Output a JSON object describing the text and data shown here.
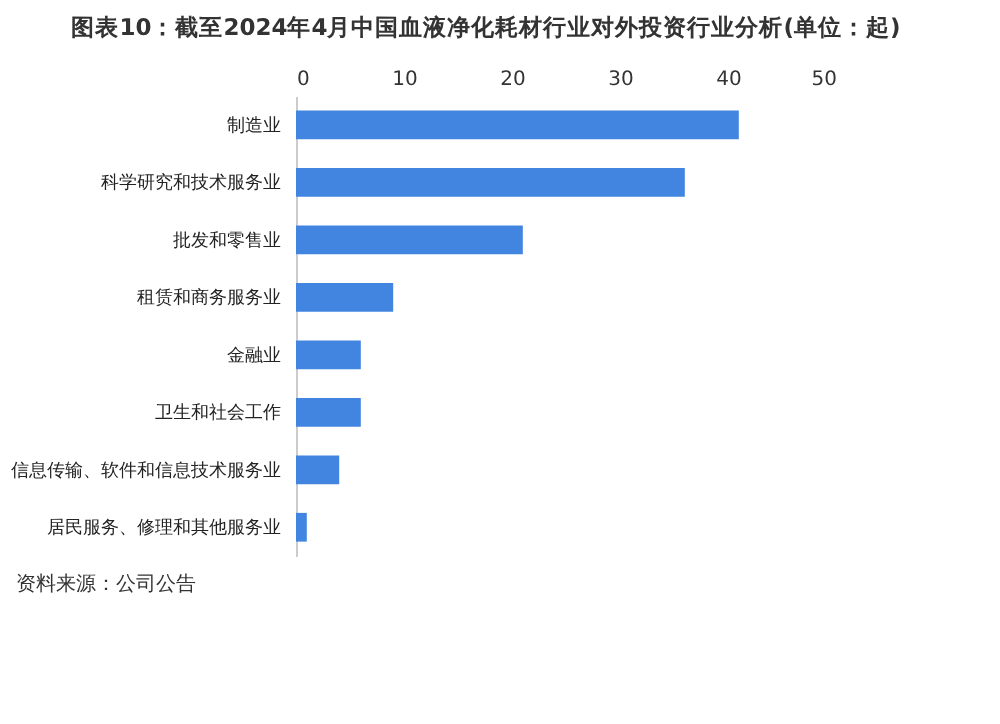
{
  "chart_data": {
    "type": "bar",
    "orientation": "horizontal",
    "title": "图表10：截至2024年4月中国血液净化耗材行业对外投资行业分析(单位：起)",
    "categories": [
      "制造业",
      "科学研究和技术服务业",
      "批发和零售业",
      "租赁和商务服务业",
      "金融业",
      "卫生和社会工作",
      "信息传输、软件和信息技术服务业",
      "居民服务、修理和其他服务业"
    ],
    "values": [
      41,
      36,
      21,
      9,
      6,
      6,
      4,
      1
    ],
    "color": "#4285e0",
    "xlim": [
      0,
      50
    ],
    "xticks": [
      0,
      10,
      20,
      30,
      40,
      50
    ],
    "grid": false,
    "annotations": [
      "资料来源：公司公告"
    ]
  }
}
